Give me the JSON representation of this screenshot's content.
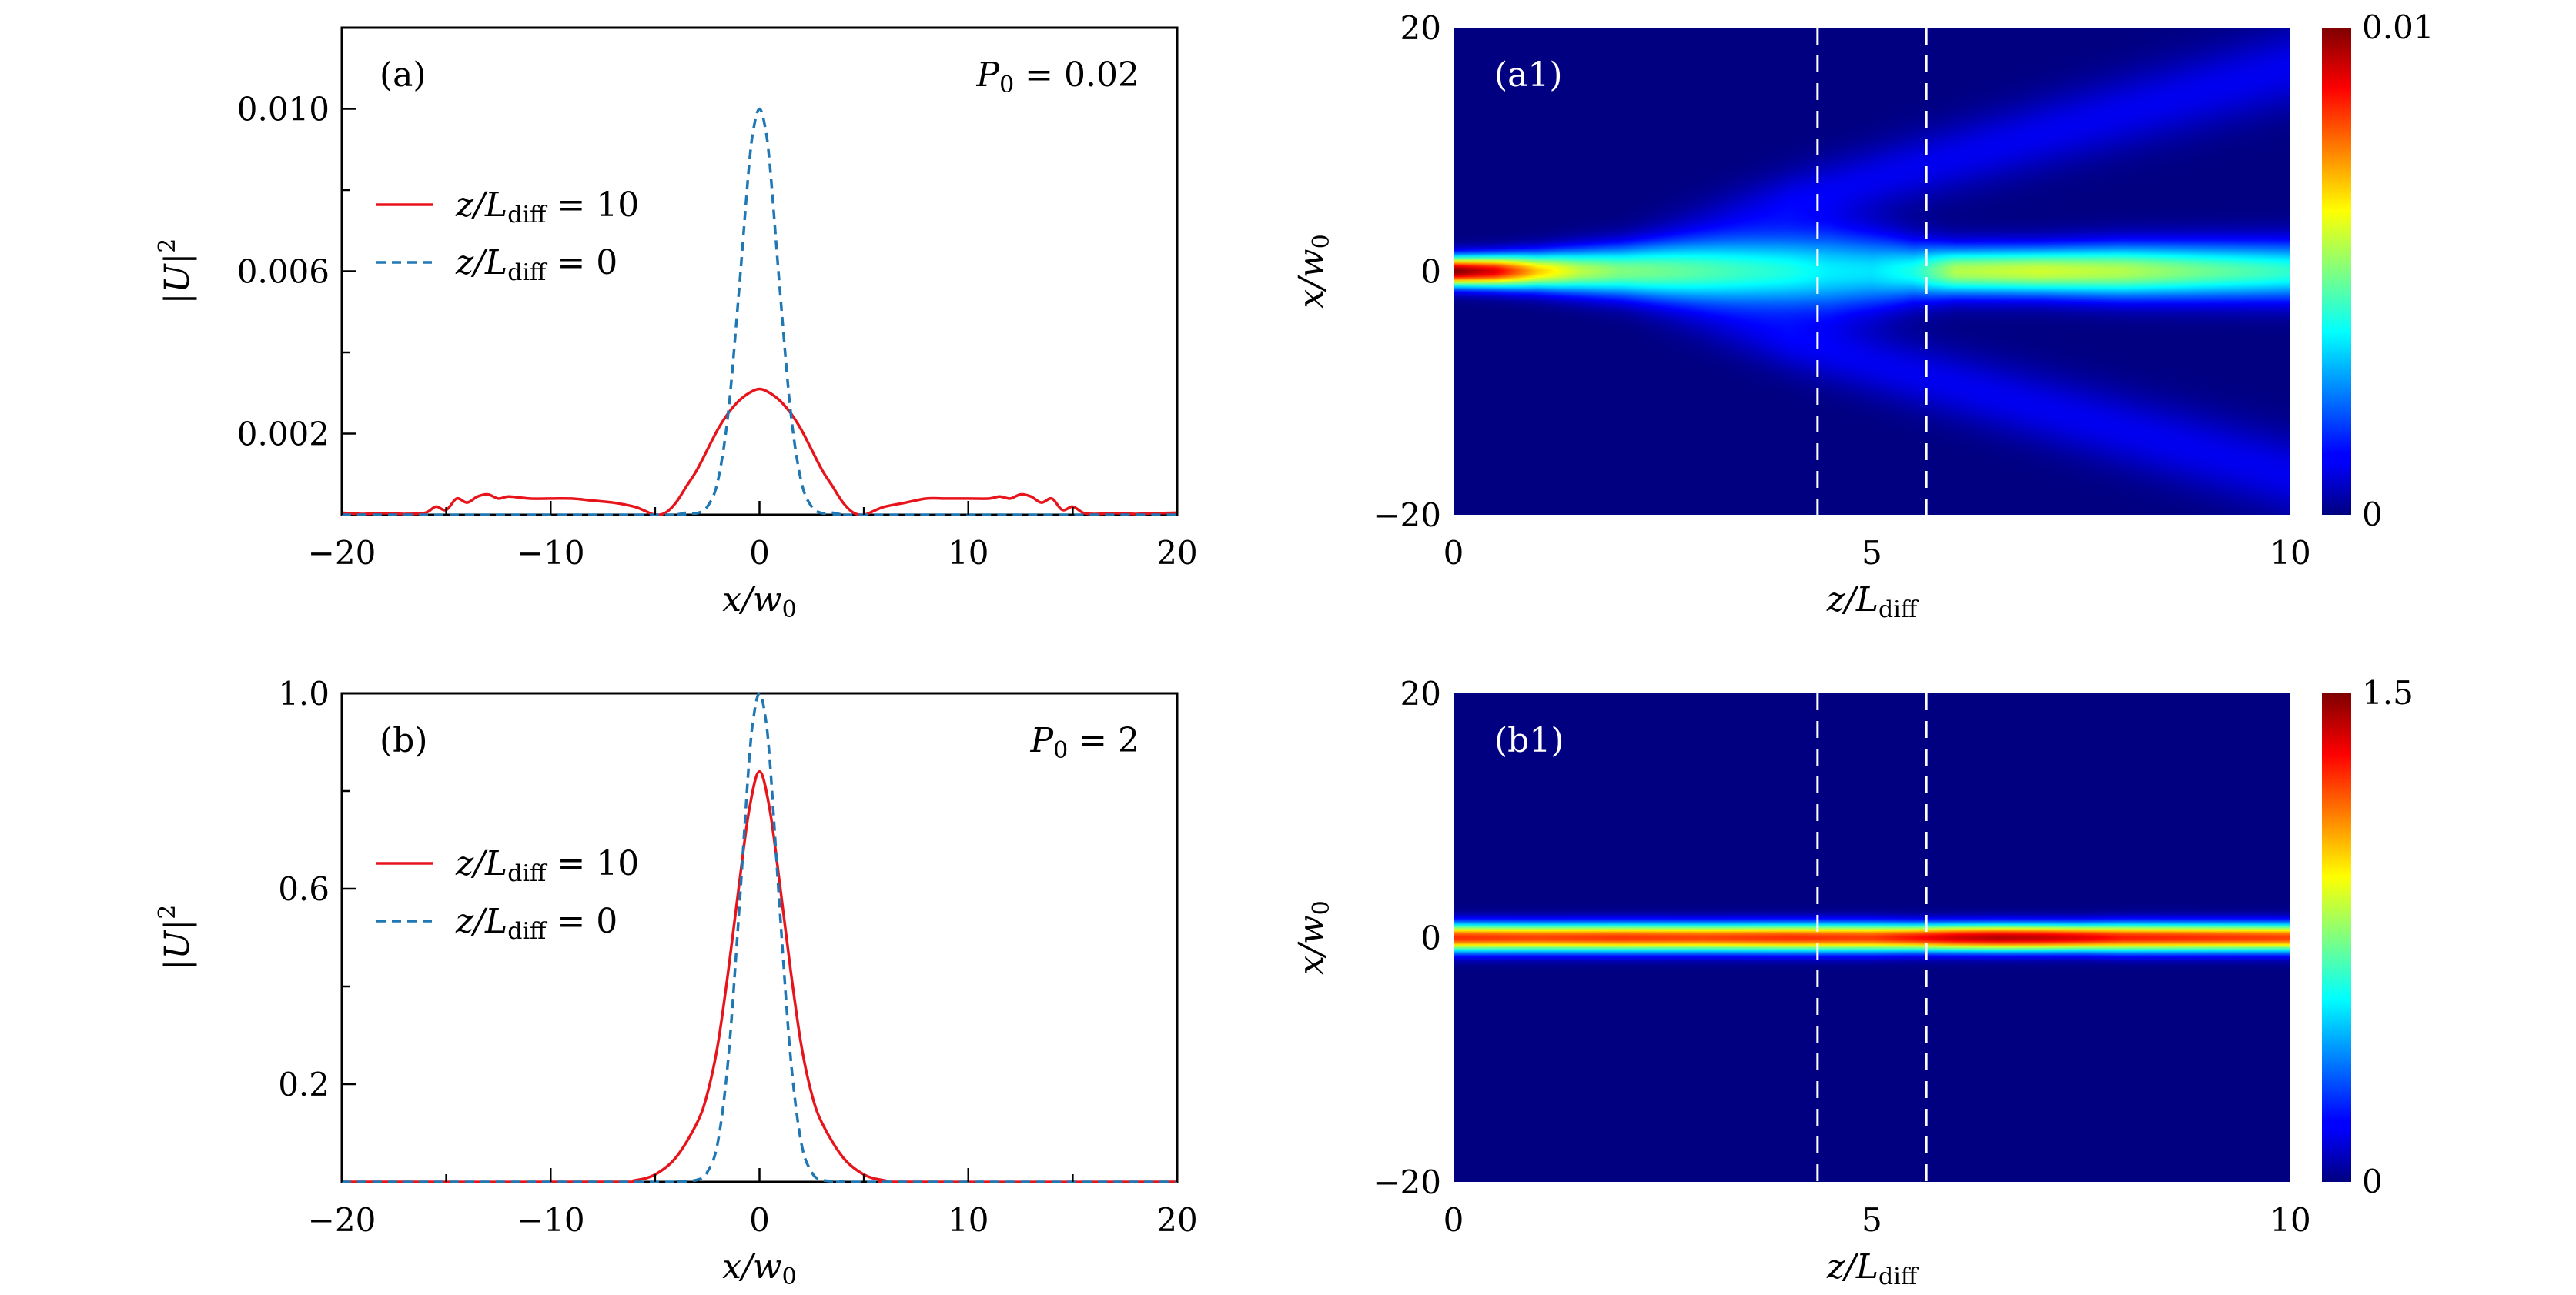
{
  "chart_data": [
    {
      "id": "a",
      "type": "line",
      "panel_label": "(a)",
      "annotation": {
        "var": "P",
        "sub": "0",
        "eq": " = 0.02"
      },
      "xlabel": {
        "var": "x/w",
        "sub": "0"
      },
      "ylabel": {
        "var": "|U|",
        "sup": "2"
      },
      "xlim": [
        -20,
        20
      ],
      "ylim": [
        0,
        0.012
      ],
      "xticks": [
        -20,
        -10,
        0,
        10,
        20
      ],
      "xtick_labels": [
        "−20",
        "−10",
        "0",
        "10",
        "20"
      ],
      "yticks": [
        0.002,
        0.006,
        0.01
      ],
      "ytick_labels": [
        "0.002",
        "0.006",
        "0.010"
      ],
      "legend_position": "upper-left",
      "series": [
        {
          "name": "z/L_diff = 10",
          "label": {
            "var": "z/L",
            "sub": "diff",
            "eq": " = 10"
          },
          "style": "solid",
          "color": "#e8141c",
          "x": [
            -20,
            -19,
            -18,
            -17,
            -16,
            -15.5,
            -15,
            -14.5,
            -14,
            -13.5,
            -13,
            -12.5,
            -12,
            -11,
            -10,
            -9,
            -8,
            -7,
            -6,
            -5.5,
            -5,
            -4.5,
            -4,
            -3.5,
            -3,
            -2.5,
            -2,
            -1.5,
            -1,
            -0.5,
            0,
            0.5,
            1,
            1.5,
            2,
            2.5,
            3,
            3.5,
            4,
            4.5,
            5,
            5.5,
            6,
            7,
            8,
            9,
            10,
            11,
            11.5,
            12,
            12.5,
            13,
            13.5,
            14,
            14.5,
            15,
            15.5,
            16,
            17,
            18,
            19,
            20
          ],
          "y": [
            5e-05,
            2e-05,
            4e-05,
            2e-05,
            5e-05,
            0.0002,
            0.00012,
            0.0004,
            0.0003,
            0.00045,
            0.0005,
            0.0004,
            0.00045,
            0.0004,
            0.0004,
            0.0004,
            0.00035,
            0.0003,
            0.0002,
            0.0001,
            0.0,
            5e-05,
            0.0003,
            0.0007,
            0.0011,
            0.0016,
            0.0021,
            0.0025,
            0.0028,
            0.003,
            0.0031,
            0.003,
            0.0028,
            0.0025,
            0.0021,
            0.0016,
            0.0011,
            0.0007,
            0.0003,
            5e-05,
            0.0,
            0.0001,
            0.0002,
            0.0003,
            0.0004,
            0.0004,
            0.0004,
            0.0004,
            0.00045,
            0.0004,
            0.0005,
            0.00045,
            0.0003,
            0.0004,
            0.00012,
            0.0002,
            5e-05,
            2e-05,
            4e-05,
            2e-05,
            4e-05,
            5e-05
          ]
        },
        {
          "name": "z/L_diff = 0",
          "label": {
            "var": "z/L",
            "sub": "diff",
            "eq": " = 0"
          },
          "style": "dashed",
          "color": "#1f77b4",
          "x": [
            -20,
            -5,
            -4,
            -3.5,
            -3,
            -2.5,
            -2,
            -1.5,
            -1,
            -0.5,
            -0.25,
            0,
            0.25,
            0.5,
            1,
            1.5,
            2,
            2.5,
            3,
            3.5,
            4,
            5,
            20
          ],
          "y": [
            0,
            0,
            5e-06,
            5e-05,
            4e-05,
            0.0002,
            0.00082,
            0.0025,
            0.0054,
            0.0086,
            0.0096,
            0.01,
            0.0096,
            0.0086,
            0.0054,
            0.0025,
            0.00082,
            0.0002,
            4e-05,
            5e-05,
            5e-06,
            0,
            0
          ]
        }
      ]
    },
    {
      "id": "b",
      "type": "line",
      "panel_label": "(b)",
      "annotation": {
        "var": "P",
        "sub": "0",
        "eq": " = 2"
      },
      "xlabel": {
        "var": "x/w",
        "sub": "0"
      },
      "ylabel": {
        "var": "|U|",
        "sup": "2"
      },
      "xlim": [
        -20,
        20
      ],
      "ylim": [
        0,
        1.0
      ],
      "xticks": [
        -20,
        -10,
        0,
        10,
        20
      ],
      "xtick_labels": [
        "−20",
        "−10",
        "0",
        "10",
        "20"
      ],
      "yticks": [
        0.2,
        0.6,
        1.0
      ],
      "ytick_labels": [
        "0.2",
        "0.6",
        "1.0"
      ],
      "legend_position": "upper-left",
      "series": [
        {
          "name": "z/L_diff = 10",
          "label": {
            "var": "z/L",
            "sub": "diff",
            "eq": " = 10"
          },
          "style": "solid",
          "color": "#e8141c",
          "x": [
            -20,
            -7,
            -6,
            -5,
            -4,
            -3,
            -2.5,
            -2,
            -1.5,
            -1,
            -0.5,
            0,
            0.5,
            1,
            1.5,
            2,
            2.5,
            3,
            4,
            5,
            6,
            7,
            20
          ],
          "y": [
            0,
            0,
            0.003,
            0.015,
            0.05,
            0.12,
            0.18,
            0.28,
            0.43,
            0.6,
            0.76,
            0.84,
            0.76,
            0.6,
            0.43,
            0.28,
            0.18,
            0.12,
            0.05,
            0.015,
            0.003,
            0,
            0
          ]
        },
        {
          "name": "z/L_diff = 0",
          "label": {
            "var": "z/L",
            "sub": "diff",
            "eq": " = 0"
          },
          "style": "dashed",
          "color": "#1f77b4",
          "x": [
            -20,
            -5,
            -4,
            -3,
            -2.5,
            -2,
            -1.5,
            -1,
            -0.5,
            -0.25,
            0,
            0.25,
            0.5,
            1,
            1.5,
            2,
            2.5,
            3,
            4,
            5,
            20
          ],
          "y": [
            0,
            0,
            0.0005,
            0.004,
            0.02,
            0.08,
            0.25,
            0.54,
            0.86,
            0.96,
            1.0,
            0.96,
            0.86,
            0.54,
            0.25,
            0.08,
            0.02,
            0.004,
            0.0005,
            0,
            0
          ]
        }
      ]
    },
    {
      "id": "a1",
      "type": "heatmap",
      "panel_label": "(a1)",
      "xlabel": {
        "var": "z/L",
        "sub": "diff"
      },
      "ylabel": {
        "var": "x/w",
        "sub": "0"
      },
      "xlim": [
        0,
        10
      ],
      "ylim": [
        -20,
        20
      ],
      "xticks": [
        0,
        5,
        10
      ],
      "xtick_labels": [
        "0",
        "5",
        "10"
      ],
      "yticks": [
        -20,
        0,
        20
      ],
      "ytick_labels": [
        "−20",
        "0",
        "20"
      ],
      "colormap": "jet",
      "vmin": 0,
      "vmax": 0.01,
      "colorbar_labels": [
        "0",
        "0.01"
      ],
      "dashed_lines_z": [
        4.35,
        5.65
      ],
      "profile_z": [
        0,
        0.5,
        1,
        1.5,
        2,
        3,
        4,
        4.5,
        5,
        5.5,
        6,
        7,
        8,
        9,
        10
      ],
      "peak_intensity": [
        0.01,
        0.009,
        0.0068,
        0.0056,
        0.005,
        0.0045,
        0.004,
        0.0036,
        0.0035,
        0.004,
        0.0055,
        0.0058,
        0.0055,
        0.0048,
        0.0042
      ],
      "beam_halfwidth": [
        1.2,
        1.3,
        1.5,
        1.8,
        2.1,
        2.6,
        3.1,
        3.4,
        3.1,
        2.4,
        2.0,
        2.0,
        2.2,
        2.3,
        2.4
      ],
      "side_lobes": {
        "amplitude": 0.0011,
        "start_z": 2.0,
        "offset": 2.0,
        "slope": 1.15,
        "halfwidth": 2.2
      }
    },
    {
      "id": "b1",
      "type": "heatmap",
      "panel_label": "(b1)",
      "xlabel": {
        "var": "z/L",
        "sub": "diff"
      },
      "ylabel": {
        "var": "x/w",
        "sub": "0"
      },
      "xlim": [
        0,
        10
      ],
      "ylim": [
        -20,
        20
      ],
      "xticks": [
        0,
        5,
        10
      ],
      "xtick_labels": [
        "0",
        "5",
        "10"
      ],
      "yticks": [
        -20,
        0,
        20
      ],
      "ytick_labels": [
        "−20",
        "0",
        "20"
      ],
      "colormap": "jet",
      "vmin": 0,
      "vmax": 1.5,
      "colorbar_labels": [
        "0",
        "1.5"
      ],
      "dashed_lines_z": [
        4.35,
        5.65
      ],
      "profile_z": [
        0,
        1,
        2,
        3,
        4,
        5,
        5.5,
        6,
        6.5,
        7,
        7.5,
        8,
        9,
        10
      ],
      "peak_intensity": [
        1.25,
        1.22,
        1.24,
        1.22,
        1.25,
        1.23,
        1.3,
        1.38,
        1.42,
        1.4,
        1.35,
        1.28,
        1.25,
        1.22
      ],
      "beam_halfwidth": [
        1.15,
        1.15,
        1.15,
        1.15,
        1.15,
        1.15,
        1.1,
        1.1,
        1.1,
        1.1,
        1.1,
        1.15,
        1.15,
        1.15
      ],
      "side_lobes": {
        "amplitude": 0,
        "start_z": 0,
        "offset": 0,
        "slope": 0,
        "halfwidth": 1
      }
    }
  ]
}
